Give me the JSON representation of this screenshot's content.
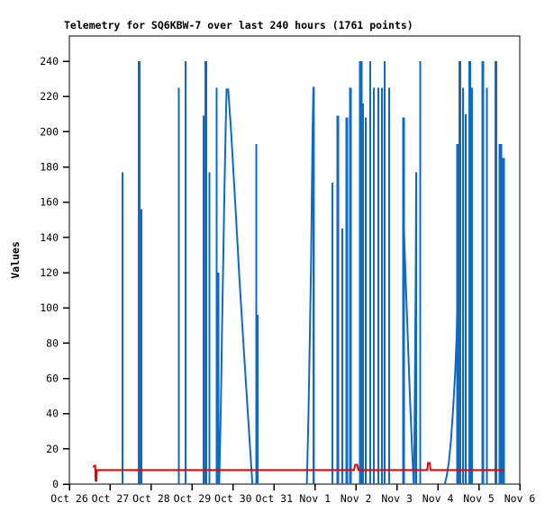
{
  "window": {
    "title": "Telemetry for SQ6KBW-7 over last 240 hours (1761 points)"
  },
  "chart_data": {
    "type": "line",
    "title": "Telemetry for SQ6KBW-7 over last 240 hours (1761 points)",
    "xlabel": "",
    "ylabel": "Values",
    "ylim": [
      0,
      240
    ],
    "grid": false,
    "legend": "none",
    "y_ticks": [
      0,
      20,
      40,
      60,
      80,
      100,
      120,
      140,
      160,
      180,
      200,
      220,
      240
    ],
    "x_tick_labels": [
      "Oct 26",
      "Oct 27",
      "Oct 28",
      "Oct 29",
      "Oct 30",
      "Oct 31",
      "Nov 1",
      "Nov 2",
      "Nov 3",
      "Nov 4",
      "Nov 5",
      "Nov 6"
    ],
    "x_axis_days_range": [
      0,
      11
    ],
    "colors": {
      "blue_series": "#0d6ac5",
      "red_series": "#ee0000",
      "axis": "#000000",
      "background": "#ffffff"
    },
    "series": [
      {
        "name": "telemetry-channel-blue",
        "color": "#0d6ac5",
        "style": "impulse-spikes",
        "spikes_day_value_width": [
          [
            1.3,
            177,
            2
          ],
          [
            1.7,
            240,
            3
          ],
          [
            1.76,
            156,
            2
          ],
          [
            2.67,
            225,
            2
          ],
          [
            2.84,
            240,
            2
          ],
          [
            3.28,
            209,
            2
          ],
          [
            3.33,
            240,
            3
          ],
          [
            3.42,
            177,
            2
          ],
          [
            3.6,
            225,
            2
          ],
          [
            3.64,
            120,
            2
          ],
          [
            4.57,
            193,
            2
          ],
          [
            4.59,
            96,
            3
          ],
          [
            5.96,
            225,
            2
          ],
          [
            6.42,
            171,
            2
          ],
          [
            6.56,
            209,
            3
          ],
          [
            6.67,
            145,
            2
          ],
          [
            6.78,
            208,
            3
          ],
          [
            6.86,
            225,
            3
          ],
          [
            7.1,
            240,
            2
          ],
          [
            7.14,
            240,
            2
          ],
          [
            7.17,
            216,
            2
          ],
          [
            7.24,
            208,
            2
          ],
          [
            7.35,
            240,
            2
          ],
          [
            7.44,
            225,
            2
          ],
          [
            7.55,
            225,
            2
          ],
          [
            7.63,
            225,
            2
          ],
          [
            7.7,
            240,
            2
          ],
          [
            7.81,
            225,
            2
          ],
          [
            8.16,
            208,
            3
          ],
          [
            8.47,
            177,
            2
          ],
          [
            8.57,
            240,
            2
          ],
          [
            9.48,
            193,
            3
          ],
          [
            9.54,
            240,
            3
          ],
          [
            9.61,
            225,
            2
          ],
          [
            9.68,
            210,
            2
          ],
          [
            9.78,
            240,
            3
          ],
          [
            9.83,
            225,
            2
          ],
          [
            10.1,
            240,
            3
          ],
          [
            10.2,
            225,
            2
          ],
          [
            10.42,
            240,
            3
          ],
          [
            10.53,
            193,
            4
          ],
          [
            10.6,
            185,
            3
          ]
        ],
        "shapes_day_value": [
          [
            [
              3.66,
              0
            ],
            [
              3.7,
              45
            ],
            [
              3.73,
              90
            ],
            [
              3.76,
              130
            ],
            [
              3.79,
              170
            ],
            [
              3.82,
              205
            ],
            [
              3.84,
              224
            ],
            [
              3.88,
              224
            ],
            [
              3.95,
              200
            ],
            [
              4.05,
              160
            ],
            [
              4.15,
              118
            ],
            [
              4.25,
              80
            ],
            [
              4.36,
              40
            ],
            [
              4.47,
              0
            ]
          ],
          [
            [
              5.8,
              0
            ],
            [
              5.84,
              40
            ],
            [
              5.87,
              80
            ],
            [
              5.9,
              120
            ],
            [
              5.92,
              160
            ],
            [
              5.94,
              200
            ],
            [
              5.96,
              225
            ],
            [
              5.97,
              225
            ],
            [
              5.97,
              0
            ]
          ],
          [
            [
              8.17,
              145
            ],
            [
              8.22,
              112
            ],
            [
              8.27,
              80
            ],
            [
              8.32,
              48
            ],
            [
              8.37,
              20
            ],
            [
              8.41,
              0
            ]
          ],
          [
            [
              8.42,
              0
            ],
            [
              8.44,
              60
            ],
            [
              8.46,
              120
            ],
            [
              8.47,
              177
            ]
          ],
          [
            [
              9.17,
              0
            ],
            [
              9.22,
              5
            ],
            [
              9.27,
              13
            ],
            [
              9.32,
              25
            ],
            [
              9.37,
              42
            ],
            [
              9.42,
              62
            ],
            [
              9.46,
              85
            ],
            [
              9.48,
              110
            ]
          ]
        ]
      },
      {
        "name": "telemetry-channel-red",
        "color": "#ee0000",
        "style": "line",
        "points_day_value": [
          [
            0.57,
            10
          ],
          [
            0.62,
            10
          ],
          [
            0.63,
            11
          ],
          [
            0.64,
            2
          ],
          [
            0.66,
            2
          ],
          [
            0.67,
            8
          ],
          [
            6.95,
            8
          ],
          [
            6.98,
            11
          ],
          [
            7.03,
            11
          ],
          [
            7.06,
            8
          ],
          [
            8.74,
            8
          ],
          [
            8.76,
            12
          ],
          [
            8.8,
            12
          ],
          [
            8.82,
            8
          ],
          [
            10.62,
            8
          ]
        ]
      }
    ]
  }
}
